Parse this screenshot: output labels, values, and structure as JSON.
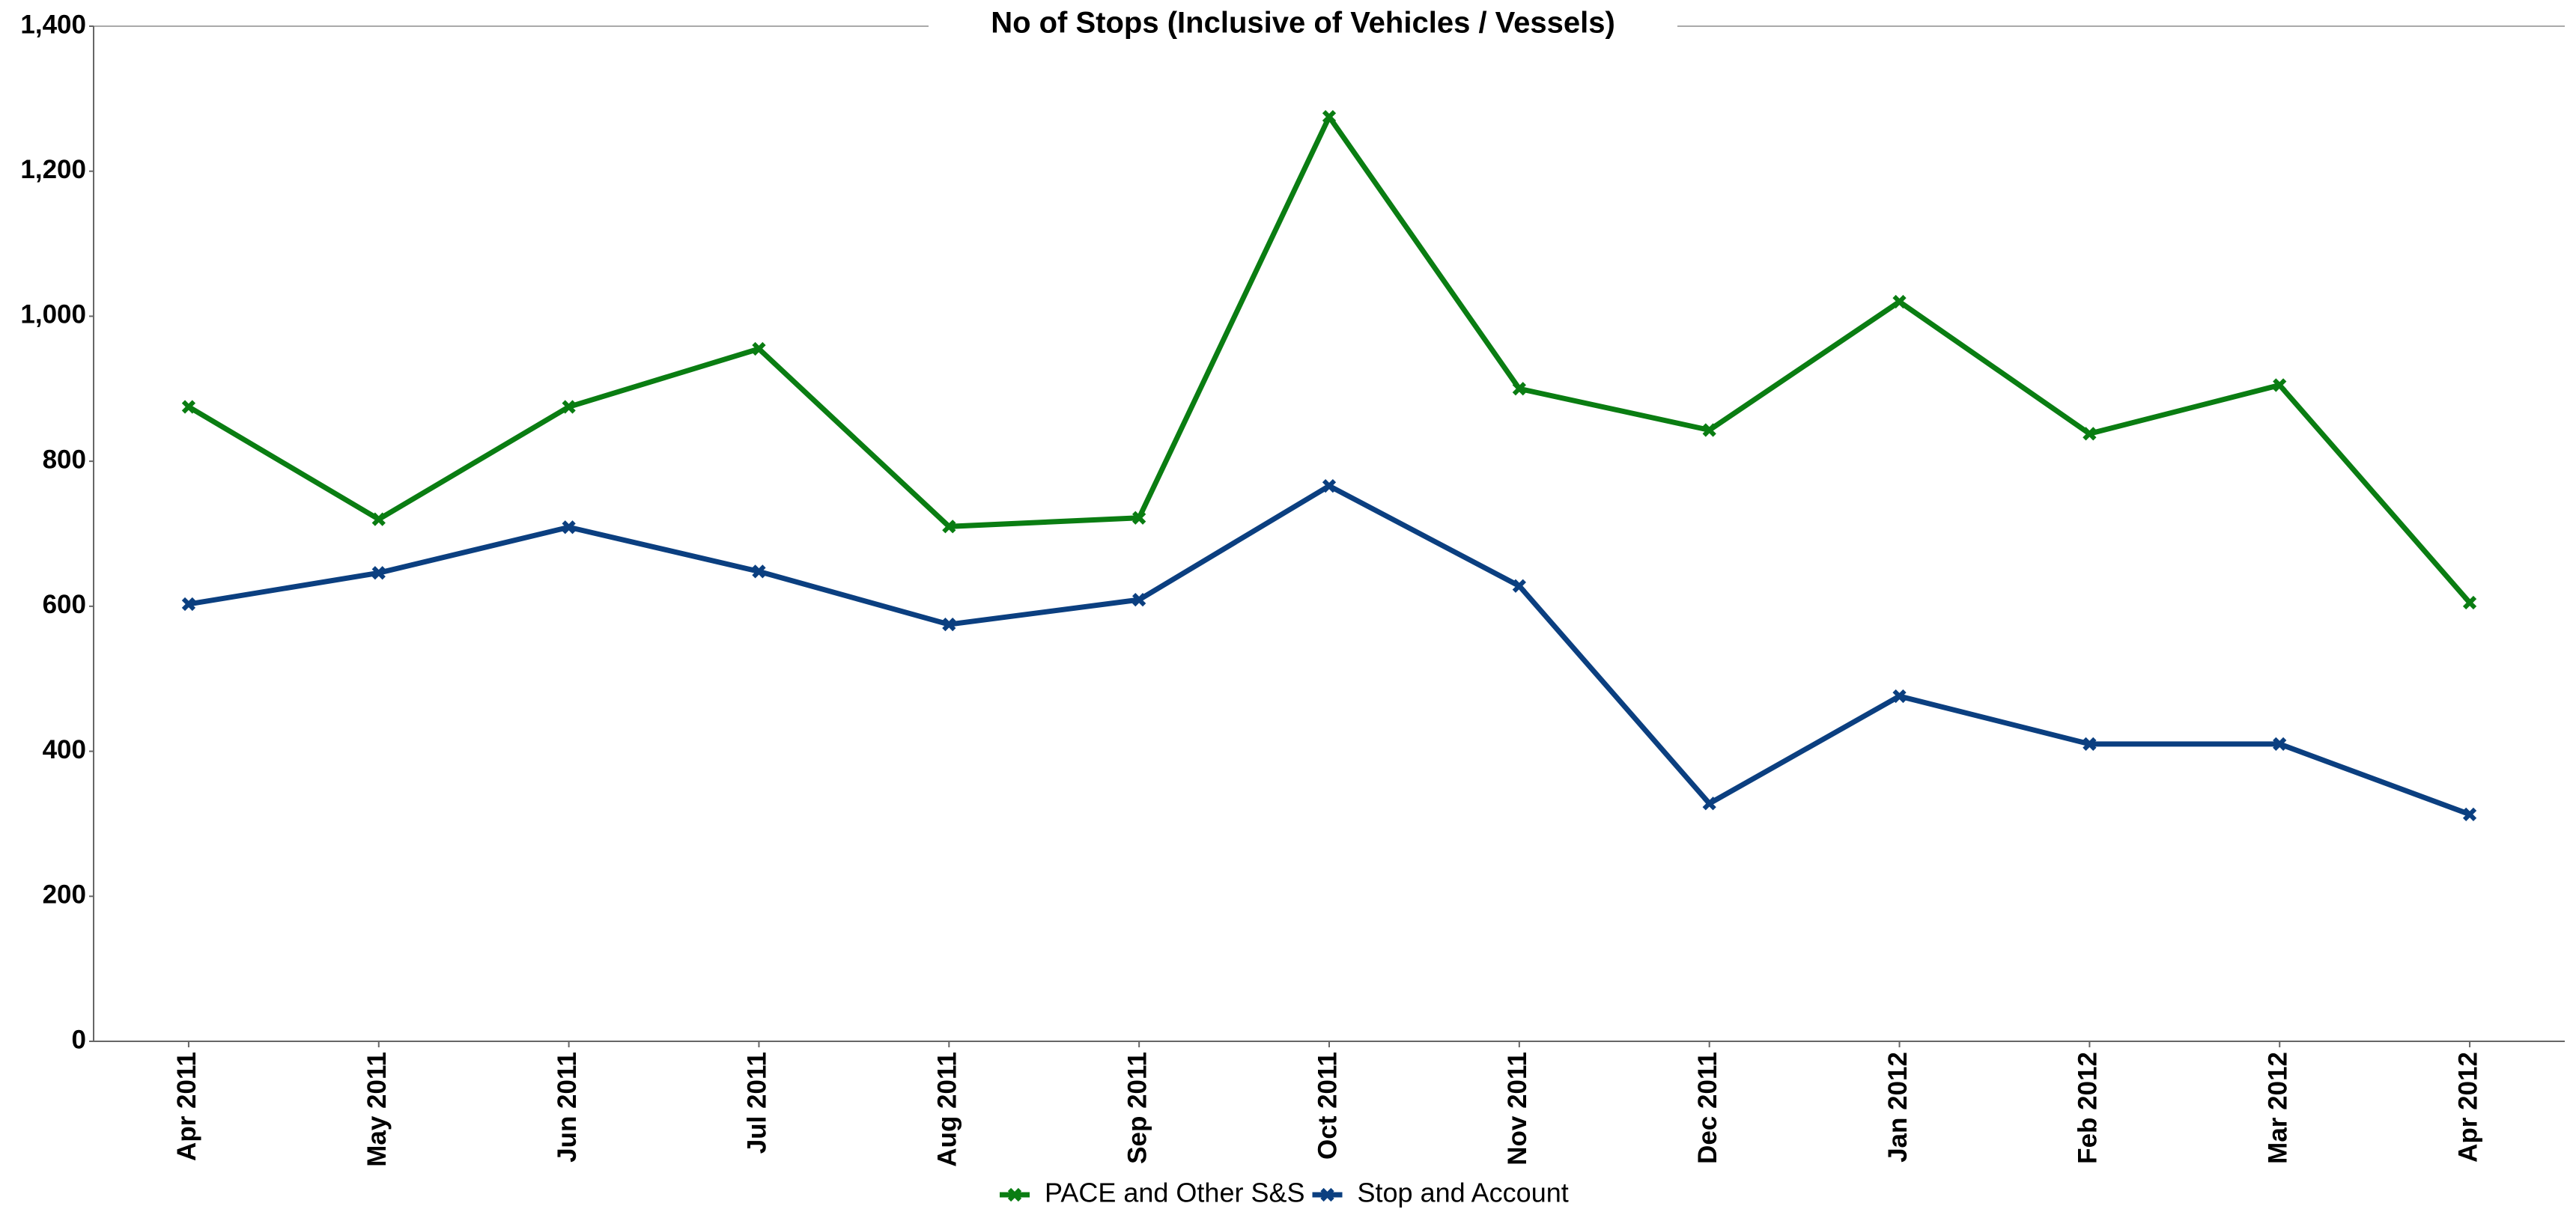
{
  "chart_data": {
    "type": "line",
    "title": "No of Stops (Inclusive of Vehicles / Vessels)",
    "categories": [
      "Apr 2011",
      "May 2011",
      "Jun 2011",
      "Jul 2011",
      "Aug 2011",
      "Sep 2011",
      "Oct 2011",
      "Nov 2011",
      "Dec 2011",
      "Jan 2012",
      "Feb 2012",
      "Mar 2012",
      "Apr 2012"
    ],
    "series": [
      {
        "name": "PACE and Other S&S",
        "color": "#0a7d12",
        "values": [
          875,
          720,
          875,
          955,
          710,
          722,
          1275,
          900,
          843,
          1020,
          838,
          905,
          605
        ]
      },
      {
        "name": "Stop and Account",
        "color": "#0b3f80",
        "values": [
          603,
          646,
          709,
          648,
          575,
          609,
          766,
          628,
          328,
          476,
          410,
          410,
          313
        ]
      }
    ],
    "ylim": [
      0,
      1400
    ],
    "yticks": [
      0,
      200,
      400,
      600,
      800,
      {
        "value": 1000,
        "label": "1,000"
      },
      {
        "value": 1200,
        "label": "1,200"
      },
      {
        "value": 1400,
        "label": "1,400"
      }
    ],
    "grid": false
  }
}
